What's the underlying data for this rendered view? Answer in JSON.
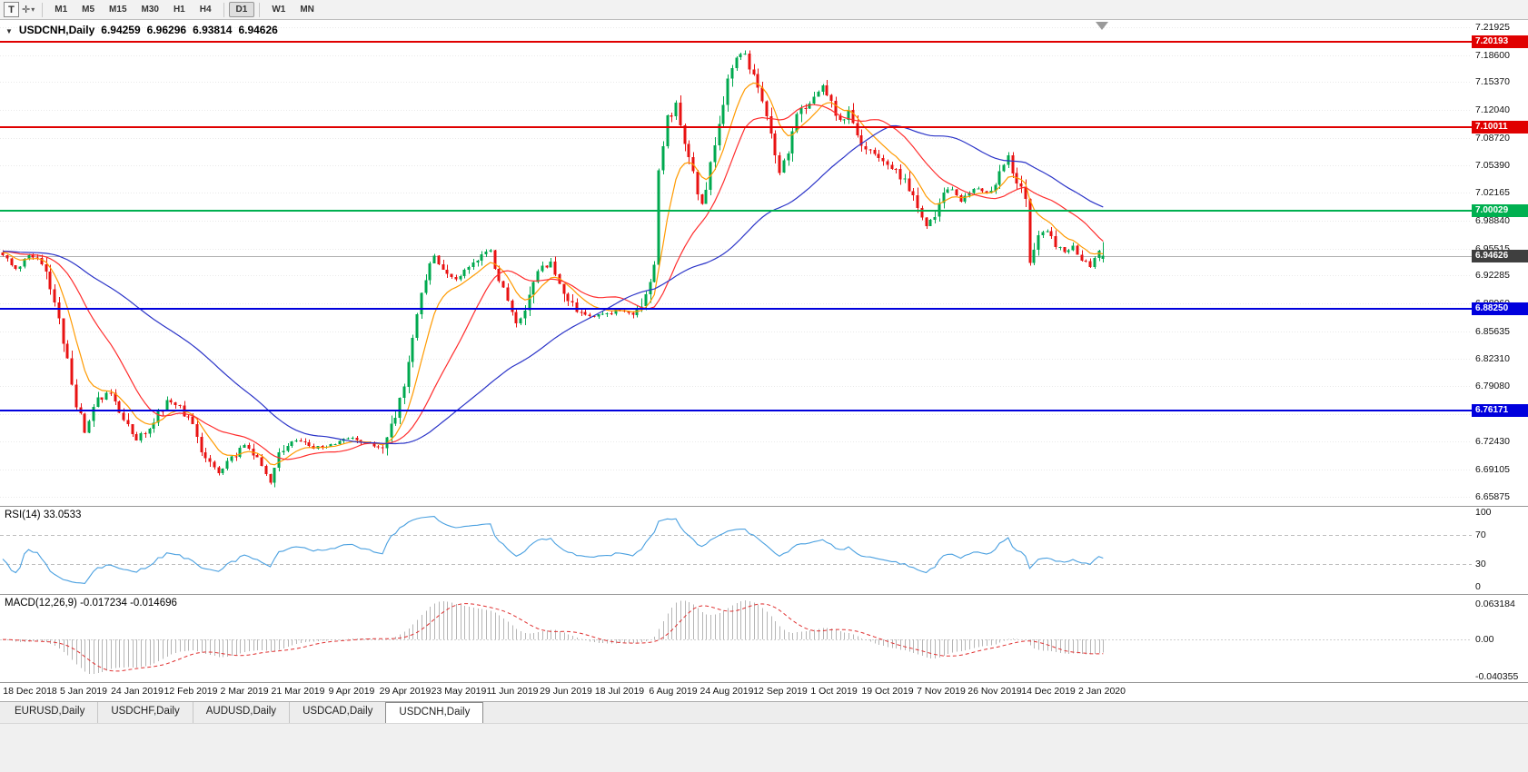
{
  "toolbar": {
    "template_button": "T",
    "cursor_tool_icon": "crosshair",
    "dropdown_arrow": "▾",
    "timeframes": [
      "M1",
      "M5",
      "M15",
      "M30",
      "H1",
      "H4",
      "D1",
      "W1",
      "MN"
    ],
    "active_timeframe": "D1"
  },
  "symbol_info": {
    "symbol": "USDCNH,Daily",
    "open": "6.94259",
    "high": "6.96296",
    "low": "6.93814",
    "close": "6.94626"
  },
  "price_axis": {
    "ticks": [
      "7.21925",
      "7.18600",
      "7.15370",
      "7.12040",
      "7.08720",
      "7.05390",
      "7.02165",
      "6.98840",
      "6.95515",
      "6.92285",
      "6.88960",
      "6.85635",
      "6.82310",
      "6.79080",
      "6.75755",
      "6.72430",
      "6.69105",
      "6.65875"
    ]
  },
  "levels": [
    {
      "label": "7.20193",
      "price": 7.20193,
      "color": "#e00000",
      "width": 2
    },
    {
      "label": "7.10011",
      "price": 7.10011,
      "color": "#e00000",
      "width": 2
    },
    {
      "label": "7.00029",
      "price": 7.00029,
      "color": "#00b050",
      "width": 2
    },
    {
      "label": "6.88250",
      "price": 6.8825,
      "color": "#0000dd",
      "width": 2
    },
    {
      "label": "6.76171",
      "price": 6.76171,
      "color": "#0000dd",
      "width": 2
    }
  ],
  "current_price": {
    "label": "6.94626",
    "price": 6.94626,
    "tag_color": "#3f3f3f"
  },
  "rsi": {
    "title": "RSI(14)",
    "value": "33.0533",
    "period": 14,
    "ticks": [
      "100",
      "70",
      "30",
      "0"
    ],
    "levels": [
      70,
      30
    ],
    "line_color": "#4aa0e0"
  },
  "macd": {
    "title": "MACD(12,26,9)",
    "value_main": "-0.017234",
    "value_signal": "-0.014696",
    "ticks": {
      "top": "0.063184",
      "zero": "0.00",
      "bottom": "-0.040355"
    }
  },
  "time_axis": {
    "labels": [
      "18 Dec 2018",
      "5 Jan 2019",
      "24 Jan 2019",
      "12 Feb 2019",
      "2 Mar 2019",
      "21 Mar 2019",
      "9 Apr 2019",
      "29 Apr 2019",
      "23 May 2019",
      "11 Jun 2019",
      "29 Jun 2019",
      "18 Jul 2019",
      "6 Aug 2019",
      "24 Aug 2019",
      "12 Sep 2019",
      "1 Oct 2019",
      "19 Oct 2019",
      "7 Nov 2019",
      "26 Nov 2019",
      "14 Dec 2019",
      "2 Jan 2020"
    ]
  },
  "tabs": {
    "items": [
      "EURUSD,Daily",
      "USDCHF,Daily",
      "AUDUSD,Daily",
      "USDCAD,Daily",
      "USDCNH,Daily"
    ],
    "active": "USDCNH,Daily"
  },
  "chart_data": {
    "type": "candlestick",
    "symbol": "USDCNH",
    "timeframe": "Daily",
    "x_range": [
      "18 Dec 2018",
      "2 Jan 2020"
    ],
    "bars": 256,
    "ylim": [
      6.648,
      7.228
    ],
    "up_color": "#00a94f",
    "down_color": "#e81212",
    "price_path_note": "approximate close prices read off the chart, [bar_index, price]",
    "price_path": [
      [
        0,
        6.945
      ],
      [
        3,
        6.93
      ],
      [
        6,
        6.948
      ],
      [
        9,
        6.938
      ],
      [
        13,
        6.873
      ],
      [
        16,
        6.79
      ],
      [
        19,
        6.735
      ],
      [
        22,
        6.772
      ],
      [
        25,
        6.786
      ],
      [
        28,
        6.748
      ],
      [
        31,
        6.727
      ],
      [
        34,
        6.742
      ],
      [
        38,
        6.772
      ],
      [
        41,
        6.766
      ],
      [
        44,
        6.744
      ],
      [
        47,
        6.703
      ],
      [
        50,
        6.688
      ],
      [
        53,
        6.705
      ],
      [
        56,
        6.72
      ],
      [
        59,
        6.705
      ],
      [
        62,
        6.679
      ],
      [
        64,
        6.713
      ],
      [
        68,
        6.726
      ],
      [
        72,
        6.717
      ],
      [
        76,
        6.719
      ],
      [
        80,
        6.729
      ],
      [
        84,
        6.721
      ],
      [
        88,
        6.717
      ],
      [
        90,
        6.742
      ],
      [
        92,
        6.772
      ],
      [
        94,
        6.818
      ],
      [
        96,
        6.878
      ],
      [
        98,
        6.922
      ],
      [
        100,
        6.944
      ],
      [
        102,
        6.931
      ],
      [
        105,
        6.917
      ],
      [
        108,
        6.934
      ],
      [
        111,
        6.947
      ],
      [
        113,
        6.957
      ],
      [
        114,
        6.933
      ],
      [
        117,
        6.897
      ],
      [
        119,
        6.863
      ],
      [
        121,
        6.884
      ],
      [
        124,
        6.927
      ],
      [
        127,
        6.937
      ],
      [
        130,
        6.907
      ],
      [
        133,
        6.879
      ],
      [
        136,
        6.873
      ],
      [
        140,
        6.877
      ],
      [
        143,
        6.883
      ],
      [
        146,
        6.877
      ],
      [
        149,
        6.897
      ],
      [
        151,
        6.938
      ],
      [
        152,
        7.048
      ],
      [
        154,
        7.108
      ],
      [
        156,
        7.125
      ],
      [
        158,
        7.085
      ],
      [
        160,
        7.042
      ],
      [
        162,
        7.008
      ],
      [
        164,
        7.052
      ],
      [
        166,
        7.108
      ],
      [
        168,
        7.158
      ],
      [
        170,
        7.185
      ],
      [
        172,
        7.192
      ],
      [
        174,
        7.158
      ],
      [
        176,
        7.132
      ],
      [
        178,
        7.092
      ],
      [
        180,
        7.048
      ],
      [
        182,
        7.075
      ],
      [
        184,
        7.11
      ],
      [
        186,
        7.126
      ],
      [
        188,
        7.14
      ],
      [
        190,
        7.147
      ],
      [
        192,
        7.128
      ],
      [
        194,
        7.107
      ],
      [
        196,
        7.117
      ],
      [
        198,
        7.09
      ],
      [
        200,
        7.072
      ],
      [
        203,
        7.066
      ],
      [
        206,
        7.052
      ],
      [
        209,
        7.036
      ],
      [
        212,
        7.006
      ],
      [
        214,
        6.984
      ],
      [
        216,
        6.998
      ],
      [
        218,
        7.021
      ],
      [
        220,
        7.028
      ],
      [
        222,
        7.012
      ],
      [
        224,
        7.021
      ],
      [
        226,
        7.028
      ],
      [
        228,
        7.021
      ],
      [
        230,
        7.031
      ],
      [
        232,
        7.052
      ],
      [
        233,
        7.066
      ],
      [
        235,
        7.031
      ],
      [
        237,
        7.018
      ],
      [
        238,
        6.94
      ],
      [
        240,
        6.968
      ],
      [
        242,
        6.978
      ],
      [
        244,
        6.961
      ],
      [
        246,
        6.951
      ],
      [
        248,
        6.958
      ],
      [
        250,
        6.941
      ],
      [
        252,
        6.934
      ],
      [
        254,
        6.95
      ],
      [
        255,
        6.946
      ]
    ],
    "ohlc_last": {
      "open": 6.94259,
      "high": 6.96296,
      "low": 6.93814,
      "close": 6.94626
    },
    "moving_averages": [
      {
        "period": 9,
        "type": "ema",
        "color": "#ff9a00"
      },
      {
        "period": 21,
        "type": "sma",
        "color": "#ff2e2e"
      },
      {
        "period": 55,
        "type": "sma",
        "color": "#2b34c8"
      }
    ],
    "horizontal_levels": [
      7.20193,
      7.10011,
      7.00029,
      6.8825,
      6.76171
    ],
    "rsi_last": 33.0533,
    "macd_last": {
      "macd": -0.017234,
      "signal": -0.014696
    }
  }
}
